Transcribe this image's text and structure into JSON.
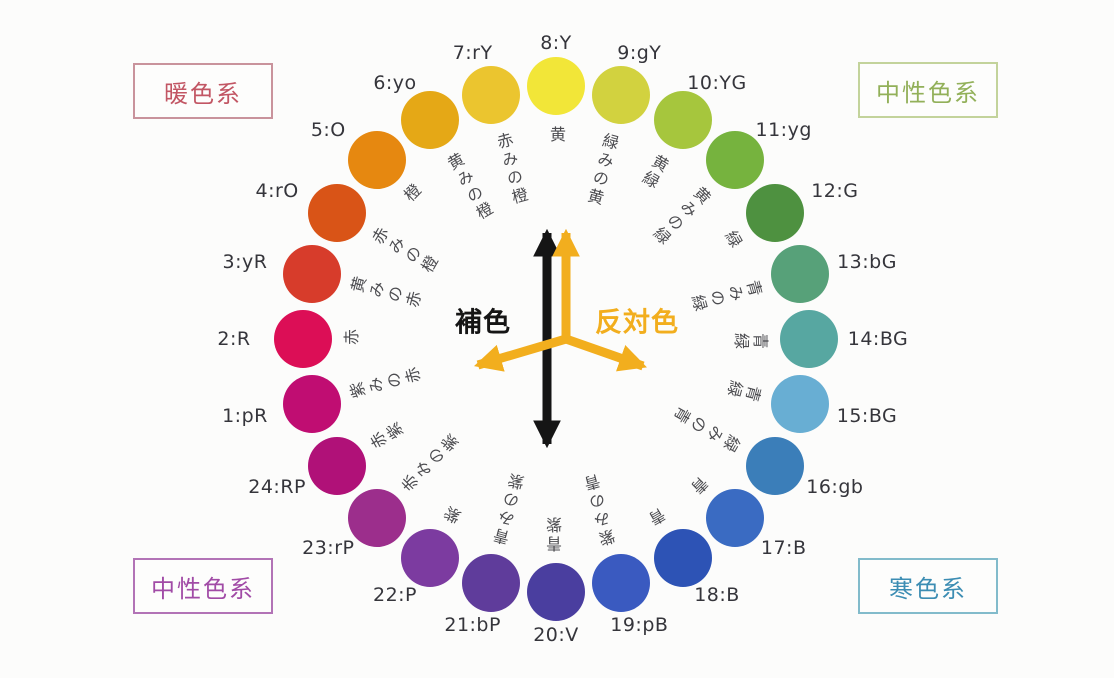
{
  "background_color": "#fcfcfb",
  "wheel": {
    "start_angle_deg": -90,
    "step_deg": 15,
    "segments": [
      {
        "id": "8:Y",
        "name": "黄",
        "color": "#F2E638"
      },
      {
        "id": "9:gY",
        "name": "緑みの黄",
        "color": "#D2D23F"
      },
      {
        "id": "10:YG",
        "name": "黄緑",
        "color": "#A6C63D"
      },
      {
        "id": "11:yg",
        "name": "黄みの緑",
        "color": "#76B33E"
      },
      {
        "id": "12:G",
        "name": "緑",
        "color": "#4E9140"
      },
      {
        "id": "13:bG",
        "name": "青みの緑",
        "color": "#57A179"
      },
      {
        "id": "14:BG",
        "name": "青緑",
        "color": "#57A7A1"
      },
      {
        "id": "15:BG",
        "name": "青緑",
        "color": "#68AED3"
      },
      {
        "id": "16:gb",
        "name": "緑みの青",
        "color": "#3B7EB9"
      },
      {
        "id": "17:B",
        "name": "青",
        "color": "#3A6BC2"
      },
      {
        "id": "18:B",
        "name": "青",
        "color": "#2D53B5"
      },
      {
        "id": "19:pB",
        "name": "紫みの青",
        "color": "#3A5AC0"
      },
      {
        "id": "20:V",
        "name": "青紫",
        "color": "#4A3E9F"
      },
      {
        "id": "21:bP",
        "name": "青みの紫",
        "color": "#5F3C9B"
      },
      {
        "id": "22:P",
        "name": "紫",
        "color": "#7C3BA0"
      },
      {
        "id": "23:rP",
        "name": "赤みの紫",
        "color": "#9C2E8C"
      },
      {
        "id": "24:RP",
        "name": "赤紫",
        "color": "#B01178"
      },
      {
        "id": "1:pR",
        "name": "紫みの赤",
        "color": "#C00D72"
      },
      {
        "id": "2:R",
        "name": "赤",
        "color": "#DC0E56"
      },
      {
        "id": "3:yR",
        "name": "黄みの赤",
        "color": "#D73C2B"
      },
      {
        "id": "4:rO",
        "name": "赤みの橙",
        "color": "#D95417"
      },
      {
        "id": "5:O",
        "name": "橙",
        "color": "#E68810"
      },
      {
        "id": "6:yo",
        "name": "黄みの橙",
        "color": "#E5A816"
      },
      {
        "id": "7:rY",
        "name": "赤みの橙",
        "color": "#EBC52F"
      }
    ]
  },
  "center_annotations": {
    "complementary": {
      "label": "補色",
      "color": "#151515"
    },
    "opposite": {
      "label": "反対色",
      "color": "#F2AE1E"
    }
  },
  "legend_boxes": [
    {
      "label": "暖色系",
      "text_color": "#C25664",
      "border_color": "#C9939C",
      "position": "top-left"
    },
    {
      "label": "中性色系",
      "text_color": "#92B059",
      "border_color": "#C3D39B",
      "position": "top-right"
    },
    {
      "label": "中性色系",
      "text_color": "#A14BA6",
      "border_color": "#B273B6",
      "position": "bottom-left"
    },
    {
      "label": "寒色系",
      "text_color": "#3C8DB3",
      "border_color": "#82BBCB",
      "position": "bottom-right"
    }
  ]
}
